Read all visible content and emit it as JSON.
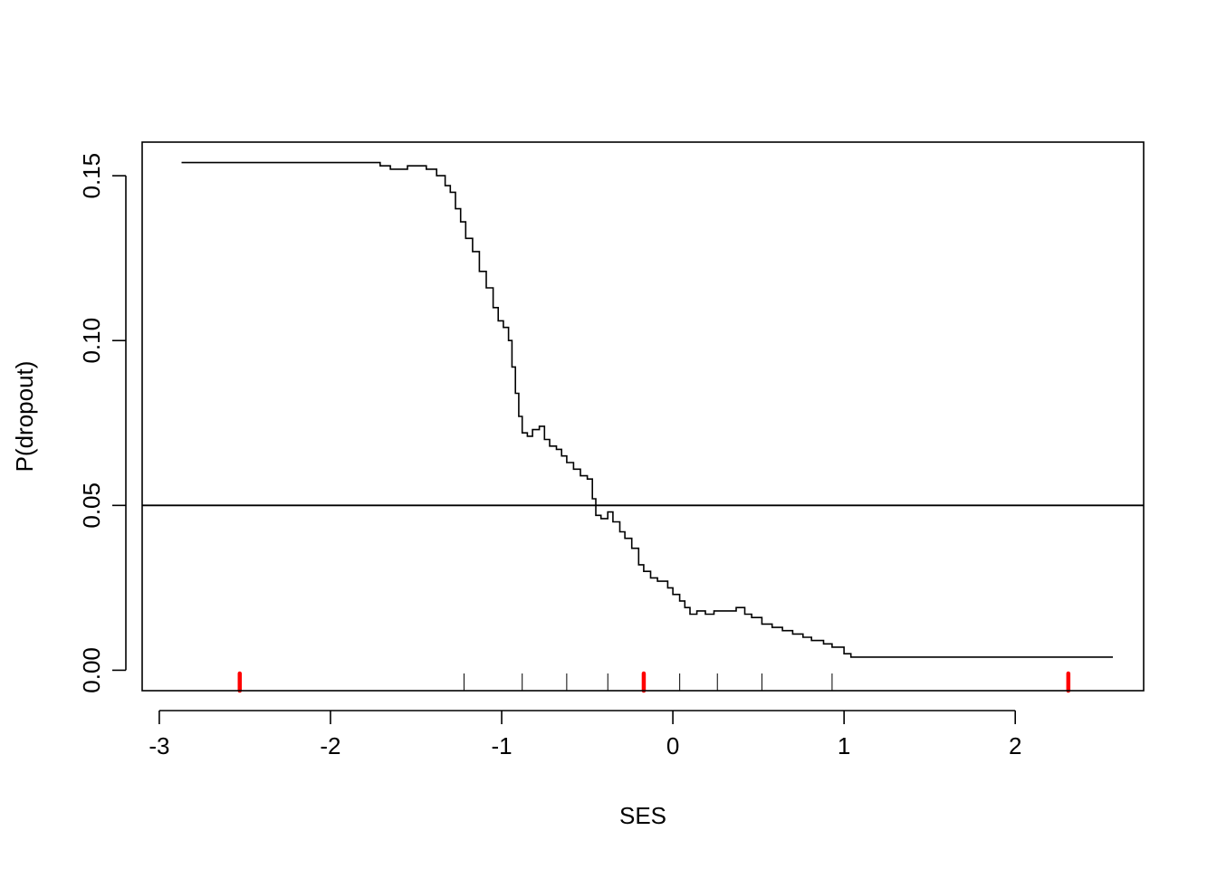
{
  "chart_data": {
    "type": "line",
    "title": "",
    "xlabel": "SES",
    "ylabel": "P(dropout)",
    "xlim": [
      -3.1,
      2.75
    ],
    "ylim": [
      -0.0062,
      0.1602
    ],
    "x_ticks": [
      -3,
      -2,
      -1,
      0,
      1,
      2
    ],
    "x_tick_labels": [
      "-3",
      "-2",
      "-1",
      "0",
      "1",
      "2"
    ],
    "y_ticks": [
      0.0,
      0.05,
      0.1,
      0.15
    ],
    "y_tick_labels": [
      "0.00",
      "0.05",
      "0.10",
      "0.15"
    ],
    "grid": false,
    "reference_line": {
      "y": 0.05,
      "color": "#000000"
    },
    "series": [
      {
        "color": "#000000",
        "points": [
          [
            -2.87,
            0.154
          ],
          [
            -1.75,
            0.154
          ],
          [
            -1.71,
            0.153
          ],
          [
            -1.65,
            0.152
          ],
          [
            -1.58,
            0.152
          ],
          [
            -1.55,
            0.153
          ],
          [
            -1.48,
            0.153
          ],
          [
            -1.44,
            0.152
          ],
          [
            -1.38,
            0.15
          ],
          [
            -1.33,
            0.147
          ],
          [
            -1.3,
            0.145
          ],
          [
            -1.27,
            0.14
          ],
          [
            -1.24,
            0.136
          ],
          [
            -1.21,
            0.131
          ],
          [
            -1.17,
            0.127
          ],
          [
            -1.13,
            0.121
          ],
          [
            -1.09,
            0.116
          ],
          [
            -1.05,
            0.11
          ],
          [
            -1.02,
            0.106
          ],
          [
            -0.99,
            0.104
          ],
          [
            -0.96,
            0.1
          ],
          [
            -0.94,
            0.092
          ],
          [
            -0.92,
            0.084
          ],
          [
            -0.9,
            0.077
          ],
          [
            -0.88,
            0.072
          ],
          [
            -0.85,
            0.071
          ],
          [
            -0.82,
            0.073
          ],
          [
            -0.78,
            0.074
          ],
          [
            -0.75,
            0.07
          ],
          [
            -0.72,
            0.068
          ],
          [
            -0.68,
            0.067
          ],
          [
            -0.65,
            0.065
          ],
          [
            -0.62,
            0.063
          ],
          [
            -0.58,
            0.061
          ],
          [
            -0.54,
            0.059
          ],
          [
            -0.5,
            0.058
          ],
          [
            -0.47,
            0.052
          ],
          [
            -0.45,
            0.047
          ],
          [
            -0.42,
            0.046
          ],
          [
            -0.38,
            0.048
          ],
          [
            -0.35,
            0.045
          ],
          [
            -0.31,
            0.042
          ],
          [
            -0.28,
            0.04
          ],
          [
            -0.24,
            0.037
          ],
          [
            -0.2,
            0.032
          ],
          [
            -0.17,
            0.03
          ],
          [
            -0.13,
            0.028
          ],
          [
            -0.09,
            0.027
          ],
          [
            -0.05,
            0.027
          ],
          [
            -0.03,
            0.025
          ],
          [
            0.0,
            0.023
          ],
          [
            0.04,
            0.021
          ],
          [
            0.07,
            0.019
          ],
          [
            0.1,
            0.017
          ],
          [
            0.14,
            0.018
          ],
          [
            0.19,
            0.017
          ],
          [
            0.24,
            0.018
          ],
          [
            0.3,
            0.018
          ],
          [
            0.37,
            0.019
          ],
          [
            0.42,
            0.017
          ],
          [
            0.46,
            0.016
          ],
          [
            0.52,
            0.014
          ],
          [
            0.58,
            0.013
          ],
          [
            0.64,
            0.012
          ],
          [
            0.7,
            0.011
          ],
          [
            0.76,
            0.01
          ],
          [
            0.81,
            0.009
          ],
          [
            0.88,
            0.008
          ],
          [
            0.93,
            0.007
          ],
          [
            1.0,
            0.005
          ],
          [
            1.04,
            0.004
          ],
          [
            2.57,
            0.004
          ]
        ]
      }
    ],
    "rug_black": [
      -1.22,
      -0.88,
      -0.62,
      -0.38,
      0.04,
      0.26,
      0.52,
      0.93
    ],
    "rug_red": [
      -2.53,
      -0.17,
      2.31
    ],
    "rug_red_color": "#ff0000"
  }
}
